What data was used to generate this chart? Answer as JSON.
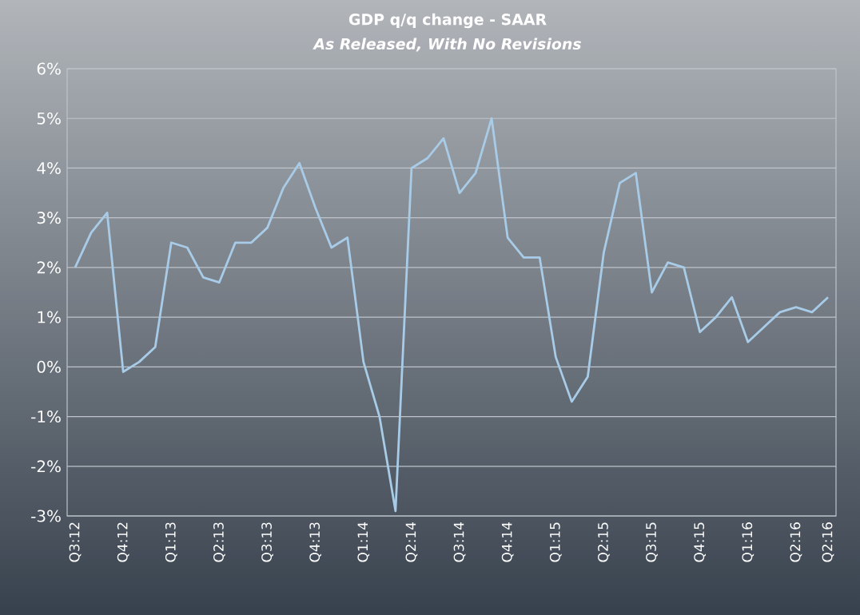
{
  "chart_data": {
    "type": "line",
    "title": "GDP q/q change - SAAR",
    "subtitle": "As Released, With No Revisions",
    "categories": [
      "Q3:12",
      null,
      null,
      "Q4:12",
      null,
      null,
      "Q1:13",
      null,
      null,
      "Q2:13",
      null,
      null,
      "Q3:13",
      null,
      null,
      "Q4:13",
      null,
      null,
      "Q1:14",
      null,
      null,
      "Q2:14",
      null,
      null,
      "Q3:14",
      null,
      null,
      "Q4:14",
      null,
      null,
      "Q1:15",
      null,
      null,
      "Q2:15",
      null,
      null,
      "Q3:15",
      null,
      null,
      "Q4:15",
      null,
      null,
      "Q1:16",
      null,
      null,
      "Q2:16",
      null,
      "Q2:16"
    ],
    "series": [
      {
        "color": "#a8cce8",
        "values": [
          2.0,
          2.7,
          3.1,
          -0.1,
          0.1,
          0.4,
          2.5,
          2.4,
          1.8,
          1.7,
          2.5,
          2.5,
          2.8,
          3.6,
          4.1,
          3.2,
          2.4,
          2.6,
          0.1,
          -1.0,
          -2.9,
          4.0,
          4.2,
          4.6,
          3.5,
          3.9,
          5.0,
          2.6,
          2.2,
          2.2,
          0.2,
          -0.7,
          -0.2,
          2.3,
          3.7,
          3.9,
          1.5,
          2.1,
          2.0,
          0.7,
          1.0,
          1.4,
          0.5,
          0.8,
          1.1,
          1.2,
          1.1,
          1.4
        ]
      }
    ],
    "ylim": [
      -3,
      6
    ],
    "yticks": [
      {
        "value": -3,
        "label": "-3%"
      },
      {
        "value": -2,
        "label": "-2%"
      },
      {
        "value": -1,
        "label": "-1%"
      },
      {
        "value": 0,
        "label": "0%"
      },
      {
        "value": 1,
        "label": "1%"
      },
      {
        "value": 2,
        "label": "2%"
      },
      {
        "value": 3,
        "label": "3%"
      },
      {
        "value": 4,
        "label": "4%"
      },
      {
        "value": 5,
        "label": "5%"
      },
      {
        "value": 6,
        "label": "6%"
      }
    ],
    "grid": "y"
  }
}
